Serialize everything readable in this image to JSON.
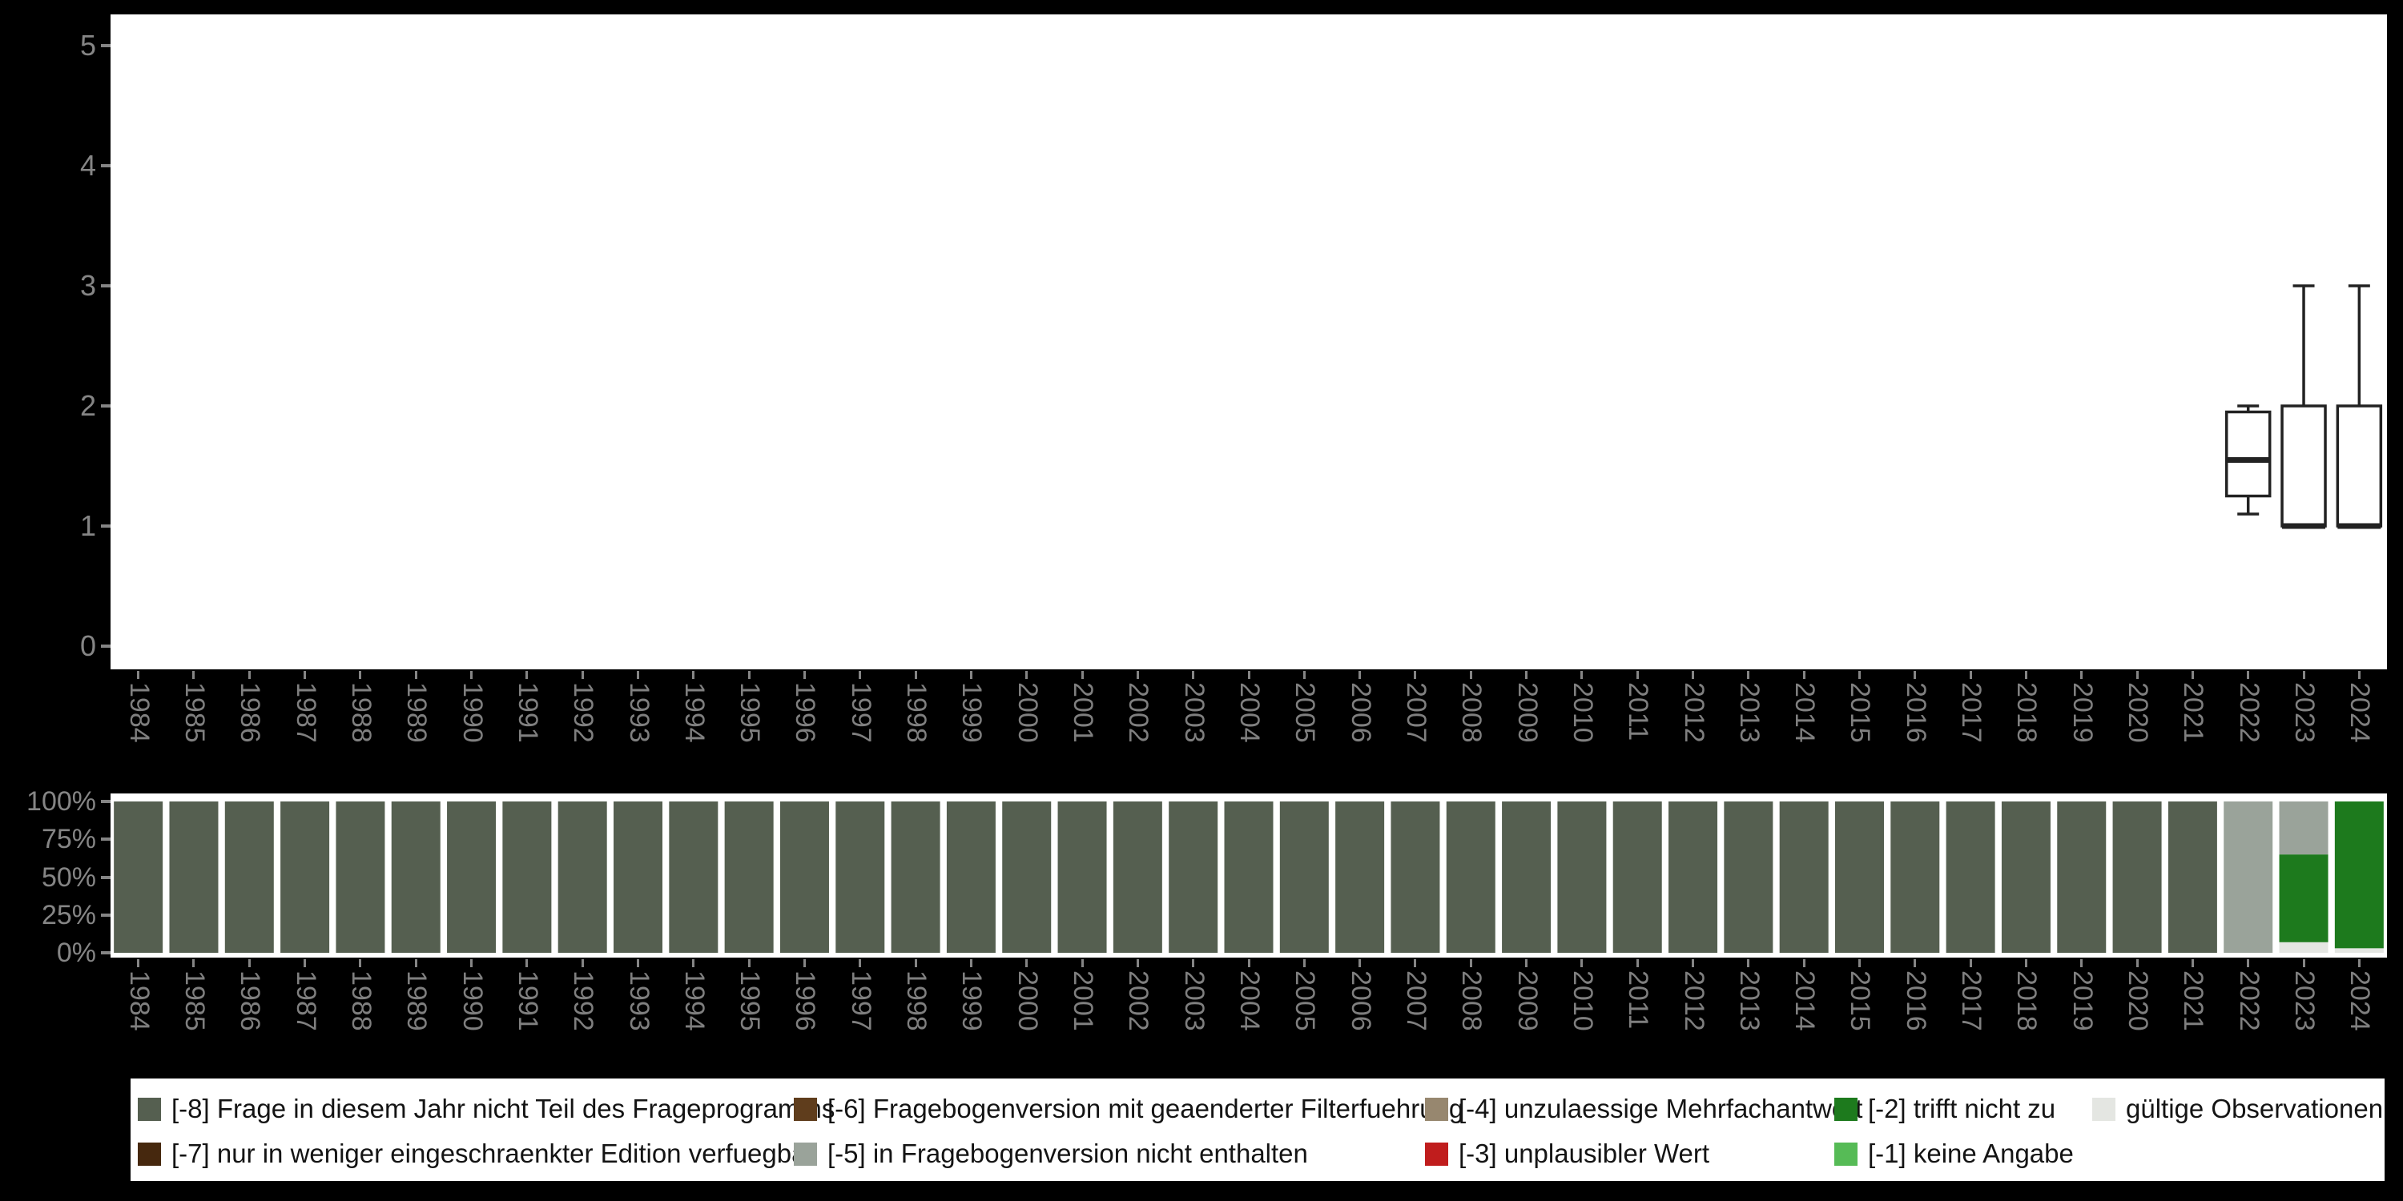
{
  "page": {
    "background": "#000000",
    "plot_background": "#ffffff",
    "axis_label_color": "#7f7f7f"
  },
  "categories": {
    "minus8": {
      "label": "[-8] Frage in diesem Jahr nicht Teil des Frageprogramms",
      "color": "#555f50"
    },
    "minus7": {
      "label": "[-7] nur in weniger eingeschraenkter Edition verfuegbar",
      "color": "#46280e"
    },
    "minus6": {
      "label": "[-6] Fragebogenversion mit geaenderter Filterfuehrung",
      "color": "#5f3d1c"
    },
    "minus5": {
      "label": "[-5] in Fragebogenversion nicht enthalten",
      "color": "#9aa39a"
    },
    "minus4": {
      "label": "[-4] unzulaessige Mehrfachantwort",
      "color": "#97876f"
    },
    "minus3": {
      "label": "[-3] unplausibler Wert",
      "color": "#c01d1d"
    },
    "minus2": {
      "label": "[-2] trifft nicht zu",
      "color": "#1d7a1d"
    },
    "minus1": {
      "label": "[-1] keine Angabe",
      "color": "#56bb56"
    },
    "valid": {
      "label": "gültige Observationen",
      "color": "#e4e6e2"
    }
  },
  "legend": {
    "rows": [
      [
        "minus8",
        "minus6",
        "minus4",
        "minus2",
        "valid"
      ],
      [
        "minus7",
        "minus5",
        "minus3",
        "minus1"
      ]
    ]
  },
  "chart_data": [
    {
      "type": "boxplot",
      "title": "",
      "xlabel": "",
      "ylabel": "",
      "ylim": [
        0,
        5
      ],
      "yticks": [
        5,
        4,
        3,
        2,
        1,
        0
      ],
      "x": [
        "1984",
        "1985",
        "1986",
        "1987",
        "1988",
        "1989",
        "1990",
        "1991",
        "1992",
        "1993",
        "1994",
        "1995",
        "1996",
        "1997",
        "1998",
        "1999",
        "2000",
        "2001",
        "2002",
        "2003",
        "2004",
        "2005",
        "2006",
        "2007",
        "2008",
        "2009",
        "2010",
        "2011",
        "2012",
        "2013",
        "2014",
        "2015",
        "2016",
        "2017",
        "2018",
        "2019",
        "2020",
        "2021",
        "2022",
        "2023",
        "2024"
      ],
      "boxes": [
        {
          "year": "2022",
          "min": 1.1,
          "q1": 1.25,
          "median": 1.55,
          "q3": 1.95,
          "max": 2.0
        },
        {
          "year": "2023",
          "min": 1.0,
          "q1": 1.0,
          "median": 1.0,
          "q3": 2.0,
          "max": 3.0
        },
        {
          "year": "2024",
          "min": 1.0,
          "q1": 1.0,
          "median": 1.0,
          "q3": 2.0,
          "max": 3.0
        }
      ],
      "box_stroke": "#222222",
      "box_fill": "#ffffff"
    },
    {
      "type": "bar",
      "stacked": true,
      "unit": "percent",
      "title": "",
      "yticks": [
        "100%",
        "75%",
        "50%",
        "25%",
        "0%"
      ],
      "ytick_values": [
        100,
        75,
        50,
        25,
        0
      ],
      "x": [
        "1984",
        "1985",
        "1986",
        "1987",
        "1988",
        "1989",
        "1990",
        "1991",
        "1992",
        "1993",
        "1994",
        "1995",
        "1996",
        "1997",
        "1998",
        "1999",
        "2000",
        "2001",
        "2002",
        "2003",
        "2004",
        "2005",
        "2006",
        "2007",
        "2008",
        "2009",
        "2010",
        "2011",
        "2012",
        "2013",
        "2014",
        "2015",
        "2016",
        "2017",
        "2018",
        "2019",
        "2020",
        "2021",
        "2022",
        "2023",
        "2024"
      ],
      "default_segments": [
        [
          "minus8",
          100
        ]
      ],
      "override_segments": {
        "2022": [
          [
            "minus5",
            100
          ]
        ],
        "2023": [
          [
            "valid",
            7
          ],
          [
            "minus2",
            58
          ],
          [
            "minus5",
            35
          ]
        ],
        "2024": [
          [
            "valid",
            3
          ],
          [
            "minus2",
            97
          ]
        ]
      }
    }
  ]
}
